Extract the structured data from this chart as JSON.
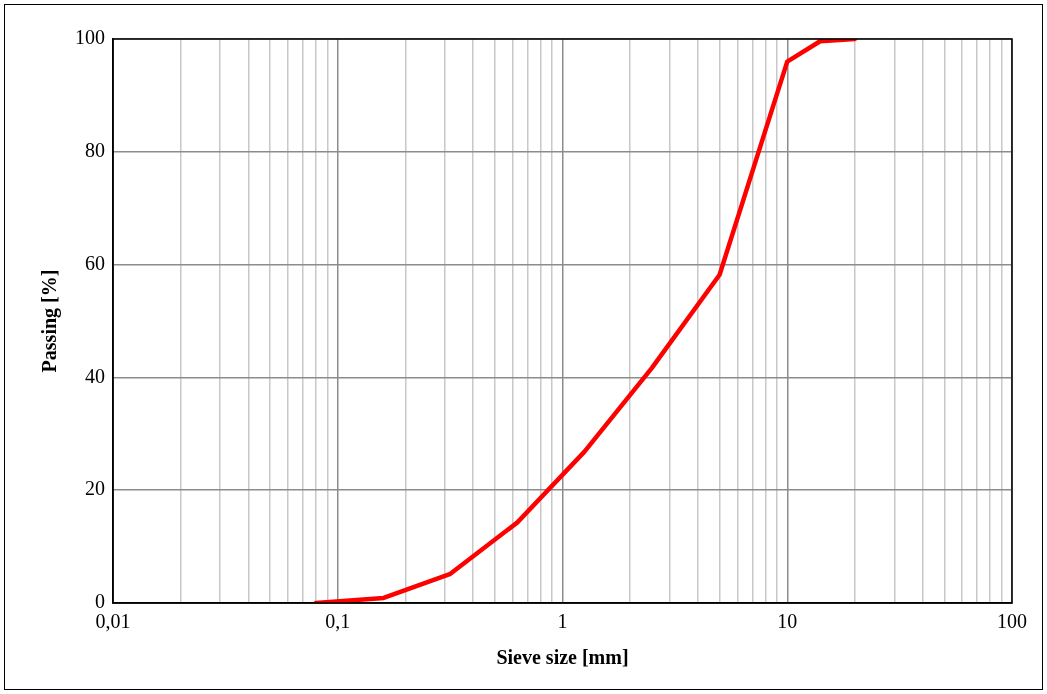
{
  "chart_data": {
    "type": "line",
    "xlabel": "Sieve size [mm]",
    "ylabel": "Passing [%]",
    "log": "x",
    "x": [
      0.08,
      0.16,
      0.315,
      0.63,
      1.25,
      2.5,
      5,
      10,
      14,
      20
    ],
    "series": [
      {
        "color": "#ff0000",
        "values": [
          0,
          0.9,
          5.1,
          14.3,
          26.8,
          41.7,
          58.2,
          96,
          99.6,
          100
        ]
      }
    ],
    "xlim": [
      0.01,
      100
    ],
    "ylim": [
      0,
      100
    ],
    "xticks": [
      {
        "value": 0.01,
        "label": "0,01"
      },
      {
        "value": 0.02,
        "label": null
      },
      {
        "value": 0.03,
        "label": null
      },
      {
        "value": 0.04,
        "label": null
      },
      {
        "value": 0.05,
        "label": null
      },
      {
        "value": 0.06,
        "label": null
      },
      {
        "value": 0.07,
        "label": null
      },
      {
        "value": 0.08,
        "label": null
      },
      {
        "value": 0.09,
        "label": null
      },
      {
        "value": 0.1,
        "label": "0,1"
      },
      {
        "value": 0.2,
        "label": null
      },
      {
        "value": 0.3,
        "label": null
      },
      {
        "value": 0.4,
        "label": null
      },
      {
        "value": 0.5,
        "label": null
      },
      {
        "value": 0.6,
        "label": null
      },
      {
        "value": 0.7,
        "label": null
      },
      {
        "value": 0.8,
        "label": null
      },
      {
        "value": 0.9,
        "label": null
      },
      {
        "value": 1,
        "label": "1"
      },
      {
        "value": 2,
        "label": null
      },
      {
        "value": 3,
        "label": null
      },
      {
        "value": 4,
        "label": null
      },
      {
        "value": 5,
        "label": null
      },
      {
        "value": 6,
        "label": null
      },
      {
        "value": 7,
        "label": null
      },
      {
        "value": 8,
        "label": null
      },
      {
        "value": 9,
        "label": null
      },
      {
        "value": 10,
        "label": "10"
      },
      {
        "value": 20,
        "label": null
      },
      {
        "value": 30,
        "label": null
      },
      {
        "value": 40,
        "label": null
      },
      {
        "value": 50,
        "label": null
      },
      {
        "value": 60,
        "label": null
      },
      {
        "value": 70,
        "label": null
      },
      {
        "value": 80,
        "label": null
      },
      {
        "value": 90,
        "label": null
      },
      {
        "value": 100,
        "label": "100"
      }
    ],
    "yticks": [
      0,
      20,
      40,
      60,
      80,
      100
    ],
    "grid": true,
    "legend": false,
    "marker": "none",
    "line_style": "solid"
  }
}
